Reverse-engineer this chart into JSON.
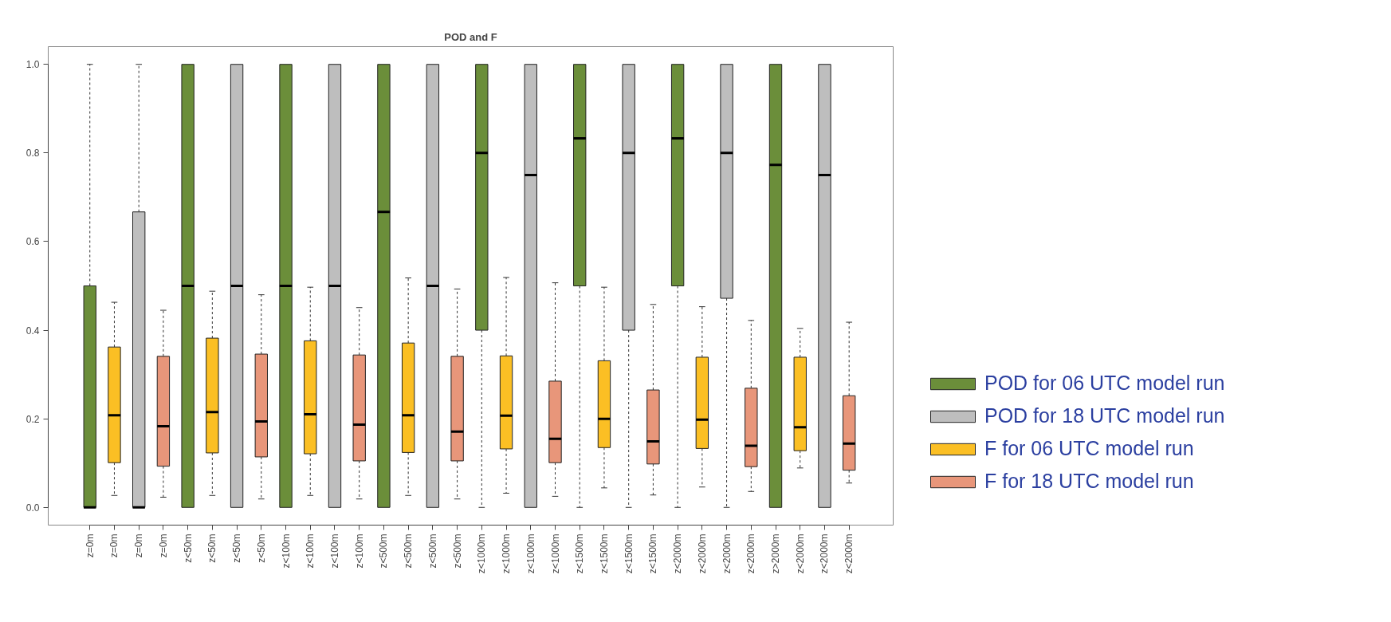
{
  "chart_data": {
    "type": "box",
    "title": "POD and F",
    "categories": [
      "z=0m",
      "z=0m",
      "z=0m",
      "z=0m",
      "z<50m",
      "z<50m",
      "z<50m",
      "z<50m",
      "z<100m",
      "z<100m",
      "z<100m",
      "z<100m",
      "z<500m",
      "z<500m",
      "z<500m",
      "z<500m",
      "z<1000m",
      "z<1000m",
      "z<1000m",
      "z<1000m",
      "z<1500m",
      "z<1500m",
      "z<1500m",
      "z<1500m",
      "z<2000m",
      "z<2000m",
      "z<2000m",
      "z<2000m",
      "z>2000m",
      "z<2000m",
      "z<2000m",
      "z<2000m"
    ],
    "ylim": [
      -0.04,
      1.04
    ],
    "yticks": [
      {
        "value": 0,
        "label": "0.0"
      },
      {
        "value": 0.2,
        "label": "0.2"
      },
      {
        "value": 0.4,
        "label": "0.4"
      },
      {
        "value": 0.6,
        "label": "0.6"
      },
      {
        "value": 0.8,
        "label": "0.8"
      },
      {
        "value": 1,
        "label": "1.0"
      }
    ],
    "grid": false,
    "legend": "right",
    "series": [
      {
        "name": "POD for 06 UTC model run",
        "color": "#6b8e3a",
        "boxes": [
          {
            "low": 0,
            "q1": 0,
            "median": 0,
            "q3": 0.5,
            "high": 1
          },
          null,
          null,
          null,
          {
            "low": 0,
            "q1": 0,
            "median": 0.5,
            "q3": 1,
            "high": 1
          },
          null,
          null,
          null,
          {
            "low": 0,
            "q1": 0,
            "median": 0.5,
            "q3": 1,
            "high": 1
          },
          null,
          null,
          null,
          {
            "low": 0,
            "q1": 0,
            "median": 0.667,
            "q3": 1,
            "high": 1
          },
          null,
          null,
          null,
          {
            "low": 0,
            "q1": 0.4,
            "median": 0.8,
            "q3": 1,
            "high": 1
          },
          null,
          null,
          null,
          {
            "low": 0,
            "q1": 0.5,
            "median": 0.833,
            "q3": 1,
            "high": 1
          },
          null,
          null,
          null,
          {
            "low": 0,
            "q1": 0.5,
            "median": 0.833,
            "q3": 1,
            "high": 1
          },
          null,
          null,
          null,
          {
            "low": 0,
            "q1": 0,
            "median": 0.773,
            "q3": 1,
            "high": 1
          },
          null,
          null,
          null
        ]
      },
      {
        "name": "POD for 18 UTC model run",
        "color": "#bebebe",
        "boxes": [
          null,
          null,
          {
            "low": 0,
            "q1": 0,
            "median": 0,
            "q3": 0.667,
            "high": 1
          },
          null,
          null,
          null,
          {
            "low": 0,
            "q1": 0,
            "median": 0.5,
            "q3": 1,
            "high": 1
          },
          null,
          null,
          null,
          {
            "low": 0,
            "q1": 0,
            "median": 0.5,
            "q3": 1,
            "high": 1
          },
          null,
          null,
          null,
          {
            "low": 0,
            "q1": 0,
            "median": 0.5,
            "q3": 1,
            "high": 1
          },
          null,
          null,
          null,
          {
            "low": 0,
            "q1": 0,
            "median": 0.75,
            "q3": 1,
            "high": 1
          },
          null,
          null,
          null,
          {
            "low": 0,
            "q1": 0.4,
            "median": 0.8,
            "q3": 1,
            "high": 1
          },
          null,
          null,
          null,
          {
            "low": 0,
            "q1": 0.472,
            "median": 0.8,
            "q3": 1,
            "high": 1
          },
          null,
          null,
          null,
          {
            "low": 0,
            "q1": 0,
            "median": 0.75,
            "q3": 1,
            "high": 1
          },
          null
        ]
      },
      {
        "name": "F for 06 UTC model run",
        "color": "#fbbf24",
        "boxes": [
          null,
          {
            "low": 0.027,
            "q1": 0.101,
            "median": 0.208,
            "q3": 0.362,
            "high": 0.463
          },
          null,
          null,
          null,
          {
            "low": 0.027,
            "q1": 0.123,
            "median": 0.215,
            "q3": 0.382,
            "high": 0.488
          },
          null,
          null,
          null,
          {
            "low": 0.027,
            "q1": 0.121,
            "median": 0.21,
            "q3": 0.376,
            "high": 0.497
          },
          null,
          null,
          null,
          {
            "low": 0.027,
            "q1": 0.124,
            "median": 0.208,
            "q3": 0.371,
            "high": 0.518
          },
          null,
          null,
          null,
          {
            "low": 0.032,
            "q1": 0.132,
            "median": 0.207,
            "q3": 0.342,
            "high": 0.519
          },
          null,
          null,
          null,
          {
            "low": 0.044,
            "q1": 0.135,
            "median": 0.2,
            "q3": 0.331,
            "high": 0.497
          },
          null,
          null,
          null,
          {
            "low": 0.046,
            "q1": 0.133,
            "median": 0.198,
            "q3": 0.339,
            "high": 0.453
          },
          null,
          null,
          null,
          {
            "low": 0.089,
            "q1": 0.128,
            "median": 0.181,
            "q3": 0.339,
            "high": 0.404
          },
          null,
          null
        ]
      },
      {
        "name": "F for 18 UTC model run",
        "color": "#e8967a",
        "boxes": [
          null,
          null,
          null,
          {
            "low": 0.023,
            "q1": 0.093,
            "median": 0.183,
            "q3": 0.341,
            "high": 0.445
          },
          null,
          null,
          null,
          {
            "low": 0.019,
            "q1": 0.114,
            "median": 0.194,
            "q3": 0.346,
            "high": 0.48
          },
          null,
          null,
          null,
          {
            "low": 0.019,
            "q1": 0.105,
            "median": 0.187,
            "q3": 0.344,
            "high": 0.451
          },
          null,
          null,
          null,
          {
            "low": 0.019,
            "q1": 0.105,
            "median": 0.171,
            "q3": 0.341,
            "high": 0.493
          },
          null,
          null,
          null,
          {
            "low": 0.025,
            "q1": 0.101,
            "median": 0.155,
            "q3": 0.285,
            "high": 0.507
          },
          null,
          null,
          null,
          {
            "low": 0.028,
            "q1": 0.098,
            "median": 0.149,
            "q3": 0.265,
            "high": 0.458
          },
          null,
          null,
          null,
          {
            "low": 0.036,
            "q1": 0.092,
            "median": 0.139,
            "q3": 0.269,
            "high": 0.422
          },
          null,
          null,
          null,
          {
            "low": 0.055,
            "q1": 0.084,
            "median": 0.144,
            "q3": 0.252,
            "high": 0.418
          }
        ]
      }
    ]
  }
}
